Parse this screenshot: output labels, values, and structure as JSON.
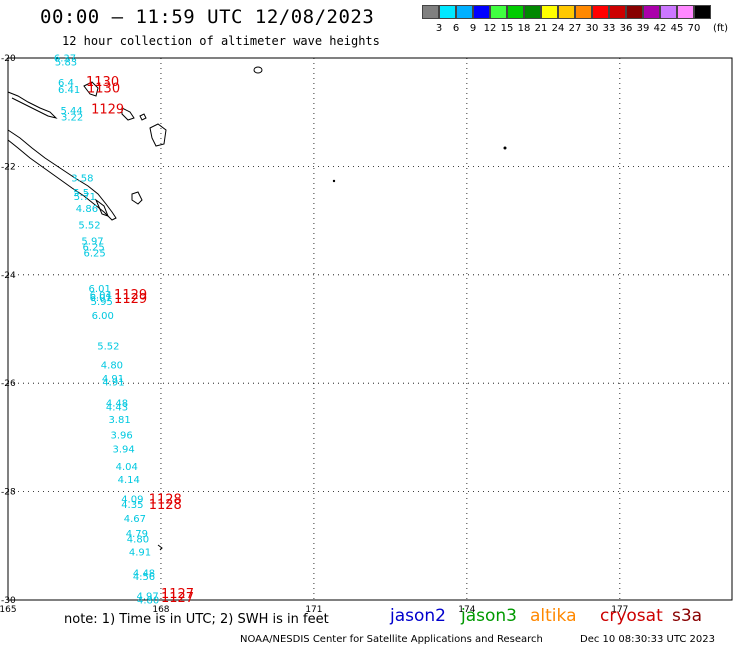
{
  "title": "00:00 — 11:59 UTC 12/08/2023",
  "subtitle": "12 hour collection of altimeter wave heights",
  "colorbar": {
    "colors": [
      "#808080",
      "#00e8ff",
      "#00b0ff",
      "#0000ff",
      "#40ff40",
      "#00cc00",
      "#008800",
      "#ffff00",
      "#ffc800",
      "#ff8800",
      "#ff0000",
      "#cc0000",
      "#880000",
      "#aa00aa",
      "#cc77ff",
      "#ff88ff",
      "#000000"
    ],
    "labels": [
      "3",
      "6",
      "9",
      "12",
      "15",
      "18",
      "21",
      "24",
      "27",
      "30",
      "33",
      "36",
      "39",
      "42",
      "45",
      "70"
    ],
    "units": "(ft)"
  },
  "map": {
    "lat_labels": [
      "-20",
      "-22",
      "-24",
      "-26",
      "-28",
      "-30"
    ],
    "lon_labels": [
      "165",
      "168",
      "171",
      "174",
      "177"
    ]
  },
  "observations": {
    "swh_ft": [
      {
        "value": "6.37",
        "lat": -20.06,
        "lon": 165.9
      },
      {
        "value": "5.83",
        "lat": -20.14,
        "lon": 165.92
      },
      {
        "value": "6.4",
        "lat": -20.52,
        "lon": 165.98
      },
      {
        "value": "6.41",
        "lat": -20.65,
        "lon": 165.98
      },
      {
        "value": "5.44",
        "lat": -21.03,
        "lon": 166.03
      },
      {
        "value": "3.22",
        "lat": -21.15,
        "lon": 166.04
      },
      {
        "value": "3.58",
        "lat": -22.28,
        "lon": 166.24
      },
      {
        "value": "5.5",
        "lat": -22.55,
        "lon": 166.28
      },
      {
        "value": "5.71",
        "lat": -22.62,
        "lon": 166.29
      },
      {
        "value": "4.86",
        "lat": -22.84,
        "lon": 166.33
      },
      {
        "value": "5.52",
        "lat": -23.15,
        "lon": 166.38
      },
      {
        "value": "5.97",
        "lat": -23.44,
        "lon": 166.44
      },
      {
        "value": "6.25",
        "lat": -23.55,
        "lon": 166.46
      },
      {
        "value": "6.25",
        "lat": -23.66,
        "lon": 166.48
      },
      {
        "value": "6.01",
        "lat": -24.32,
        "lon": 166.58
      },
      {
        "value": "6.04",
        "lat": -24.44,
        "lon": 166.6
      },
      {
        "value": "6.01",
        "lat": -24.48,
        "lon": 166.6
      },
      {
        "value": "5.95",
        "lat": -24.56,
        "lon": 166.62
      },
      {
        "value": "6.00",
        "lat": -24.82,
        "lon": 166.64
      },
      {
        "value": "5.52",
        "lat": -25.38,
        "lon": 166.75
      },
      {
        "value": "4.80",
        "lat": -25.73,
        "lon": 166.82
      },
      {
        "value": "4.91",
        "lat": -25.98,
        "lon": 166.84
      },
      {
        "value": "4.91",
        "lat": -26.04,
        "lon": 166.85
      },
      {
        "value": "4.48",
        "lat": -26.43,
        "lon": 166.92
      },
      {
        "value": "4.43",
        "lat": -26.5,
        "lon": 166.92
      },
      {
        "value": "3.81",
        "lat": -26.73,
        "lon": 166.97
      },
      {
        "value": "3.96",
        "lat": -27.02,
        "lon": 167.01
      },
      {
        "value": "3.94",
        "lat": -27.28,
        "lon": 167.05
      },
      {
        "value": "4.04",
        "lat": -27.6,
        "lon": 167.11
      },
      {
        "value": "4.14",
        "lat": -27.84,
        "lon": 167.15
      },
      {
        "value": "4.09",
        "lat": -28.2,
        "lon": 167.22
      },
      {
        "value": "4.35",
        "lat": -28.3,
        "lon": 167.22
      },
      {
        "value": "4.67",
        "lat": -28.56,
        "lon": 167.27
      },
      {
        "value": "4.79",
        "lat": -28.84,
        "lon": 167.31
      },
      {
        "value": "4.80",
        "lat": -28.94,
        "lon": 167.33
      },
      {
        "value": "4.91",
        "lat": -29.18,
        "lon": 167.37
      },
      {
        "value": "4.48",
        "lat": -29.57,
        "lon": 167.45
      },
      {
        "value": "4.56",
        "lat": -29.63,
        "lon": 167.45
      },
      {
        "value": "4.97",
        "lat": -29.99,
        "lon": 167.52
      },
      {
        "value": "4.80",
        "lat": -30.06,
        "lon": 167.53
      }
    ],
    "times_utc": [
      {
        "value": "1130",
        "lat": -20.52,
        "lon": 166.53
      },
      {
        "value": "1130",
        "lat": -20.64,
        "lon": 166.55
      },
      {
        "value": "1129",
        "lat": -21.02,
        "lon": 166.63
      },
      {
        "value": "1129",
        "lat": -24.45,
        "lon": 167.08
      },
      {
        "value": "1129",
        "lat": -24.52,
        "lon": 167.08
      },
      {
        "value": "1128",
        "lat": -28.22,
        "lon": 167.76
      },
      {
        "value": "1128",
        "lat": -28.32,
        "lon": 167.76
      },
      {
        "value": "1127",
        "lat": -29.96,
        "lon": 168.0
      },
      {
        "value": "1127",
        "lat": -30.04,
        "lon": 168.0
      }
    ]
  },
  "note": "note: 1) Time is in UTC; 2) SWH is in feet",
  "satellites": [
    {
      "name": "jason2",
      "color": "#0000cc"
    },
    {
      "name": "jason3",
      "color": "#009900"
    },
    {
      "name": "altika",
      "color": "#ff8800"
    },
    {
      "name": "cryosat",
      "color": "#cc0000"
    },
    {
      "name": "s3a",
      "color": "#880000"
    }
  ],
  "credit": "NOAA/NESDIS Center for Satellite Applications and Research",
  "timestamp": "Dec 10 08:30:33 UTC 2023"
}
